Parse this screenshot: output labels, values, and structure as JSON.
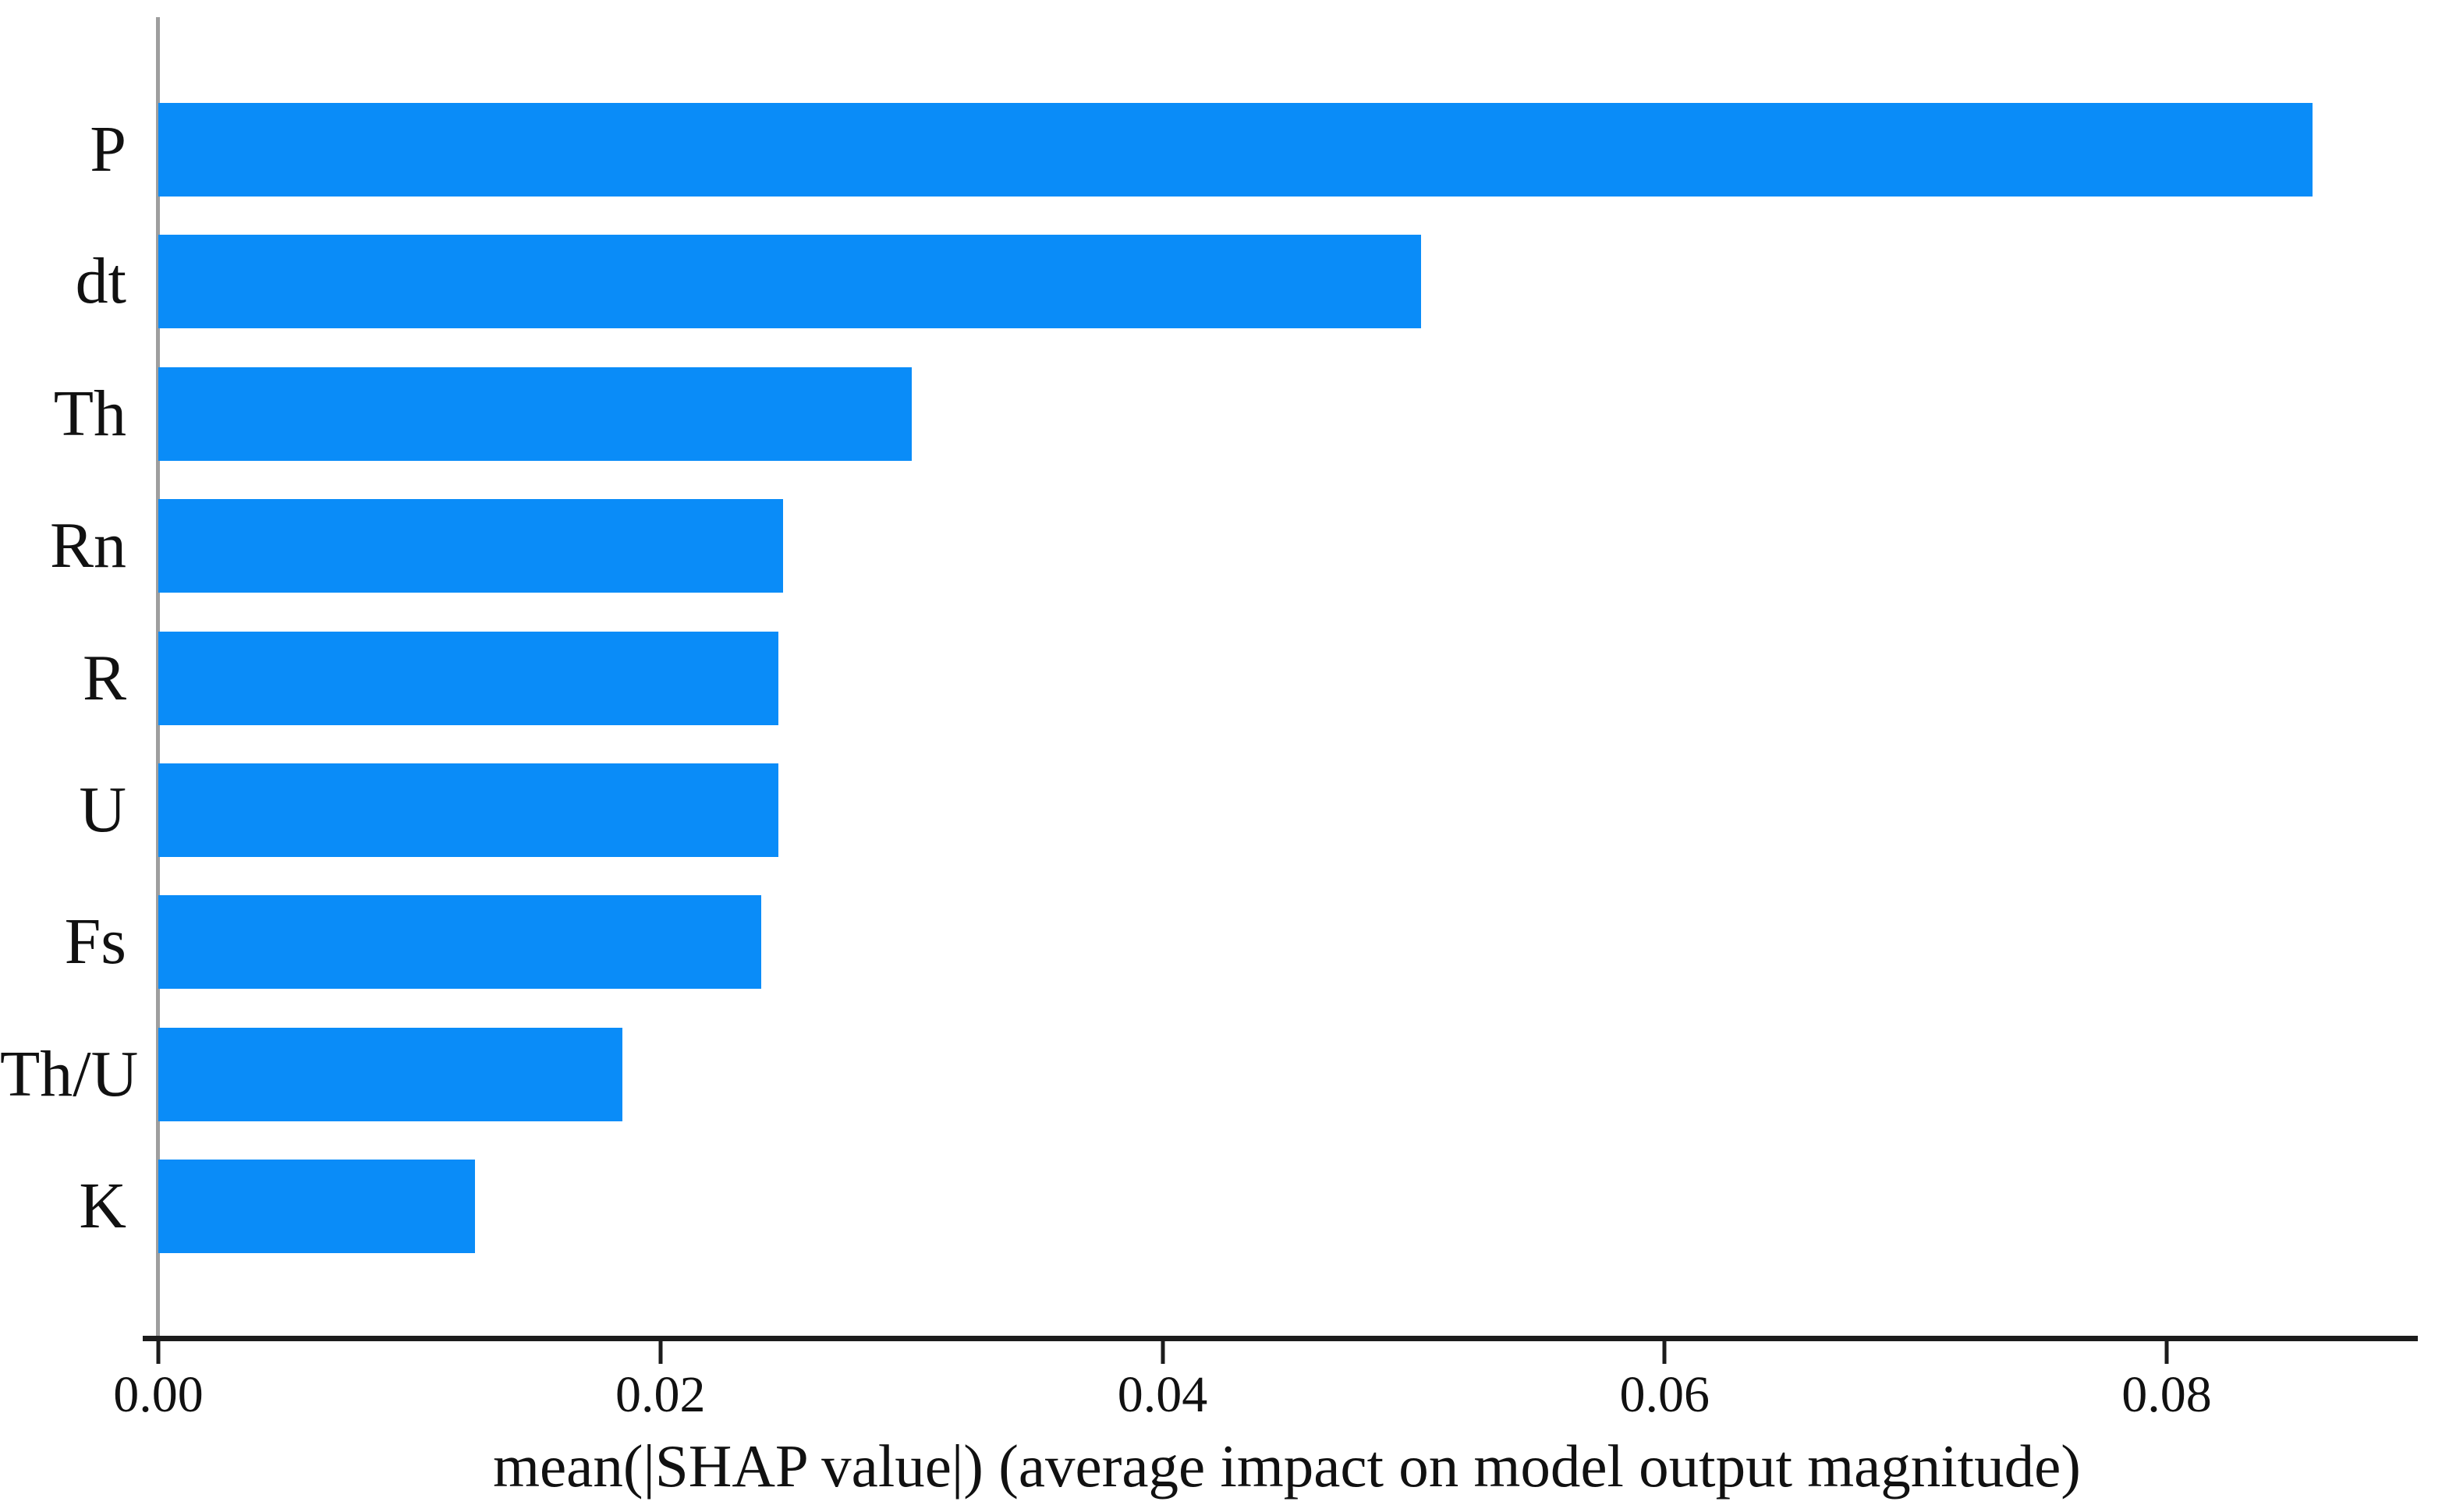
{
  "chart_data": {
    "type": "bar",
    "orientation": "horizontal",
    "title": "",
    "xlabel": "mean(|SHAP value|) (average impact on model output magnitude)",
    "ylabel": "",
    "categories": [
      "P",
      "dt",
      "Th",
      "Rn",
      "R",
      "U",
      "Fs",
      "Th/U",
      "K"
    ],
    "values": [
      0.0858,
      0.0503,
      0.03,
      0.0249,
      0.0247,
      0.0247,
      0.024,
      0.0185,
      0.0126
    ],
    "x_ticks": {
      "values": [
        0,
        0.02,
        0.04,
        0.06,
        0.08
      ],
      "labels": [
        "0.00",
        "0.02",
        "0.04",
        "0.06",
        "0.08"
      ]
    },
    "xlim": [
      0,
      0.09
    ],
    "grid": false,
    "legend": null,
    "colors": {
      "bar": "#0a8cf8",
      "x_axis": "#1c1c1c",
      "y_spine": "#9e9e9e",
      "text": "#111111",
      "background": "#ffffff"
    }
  }
}
